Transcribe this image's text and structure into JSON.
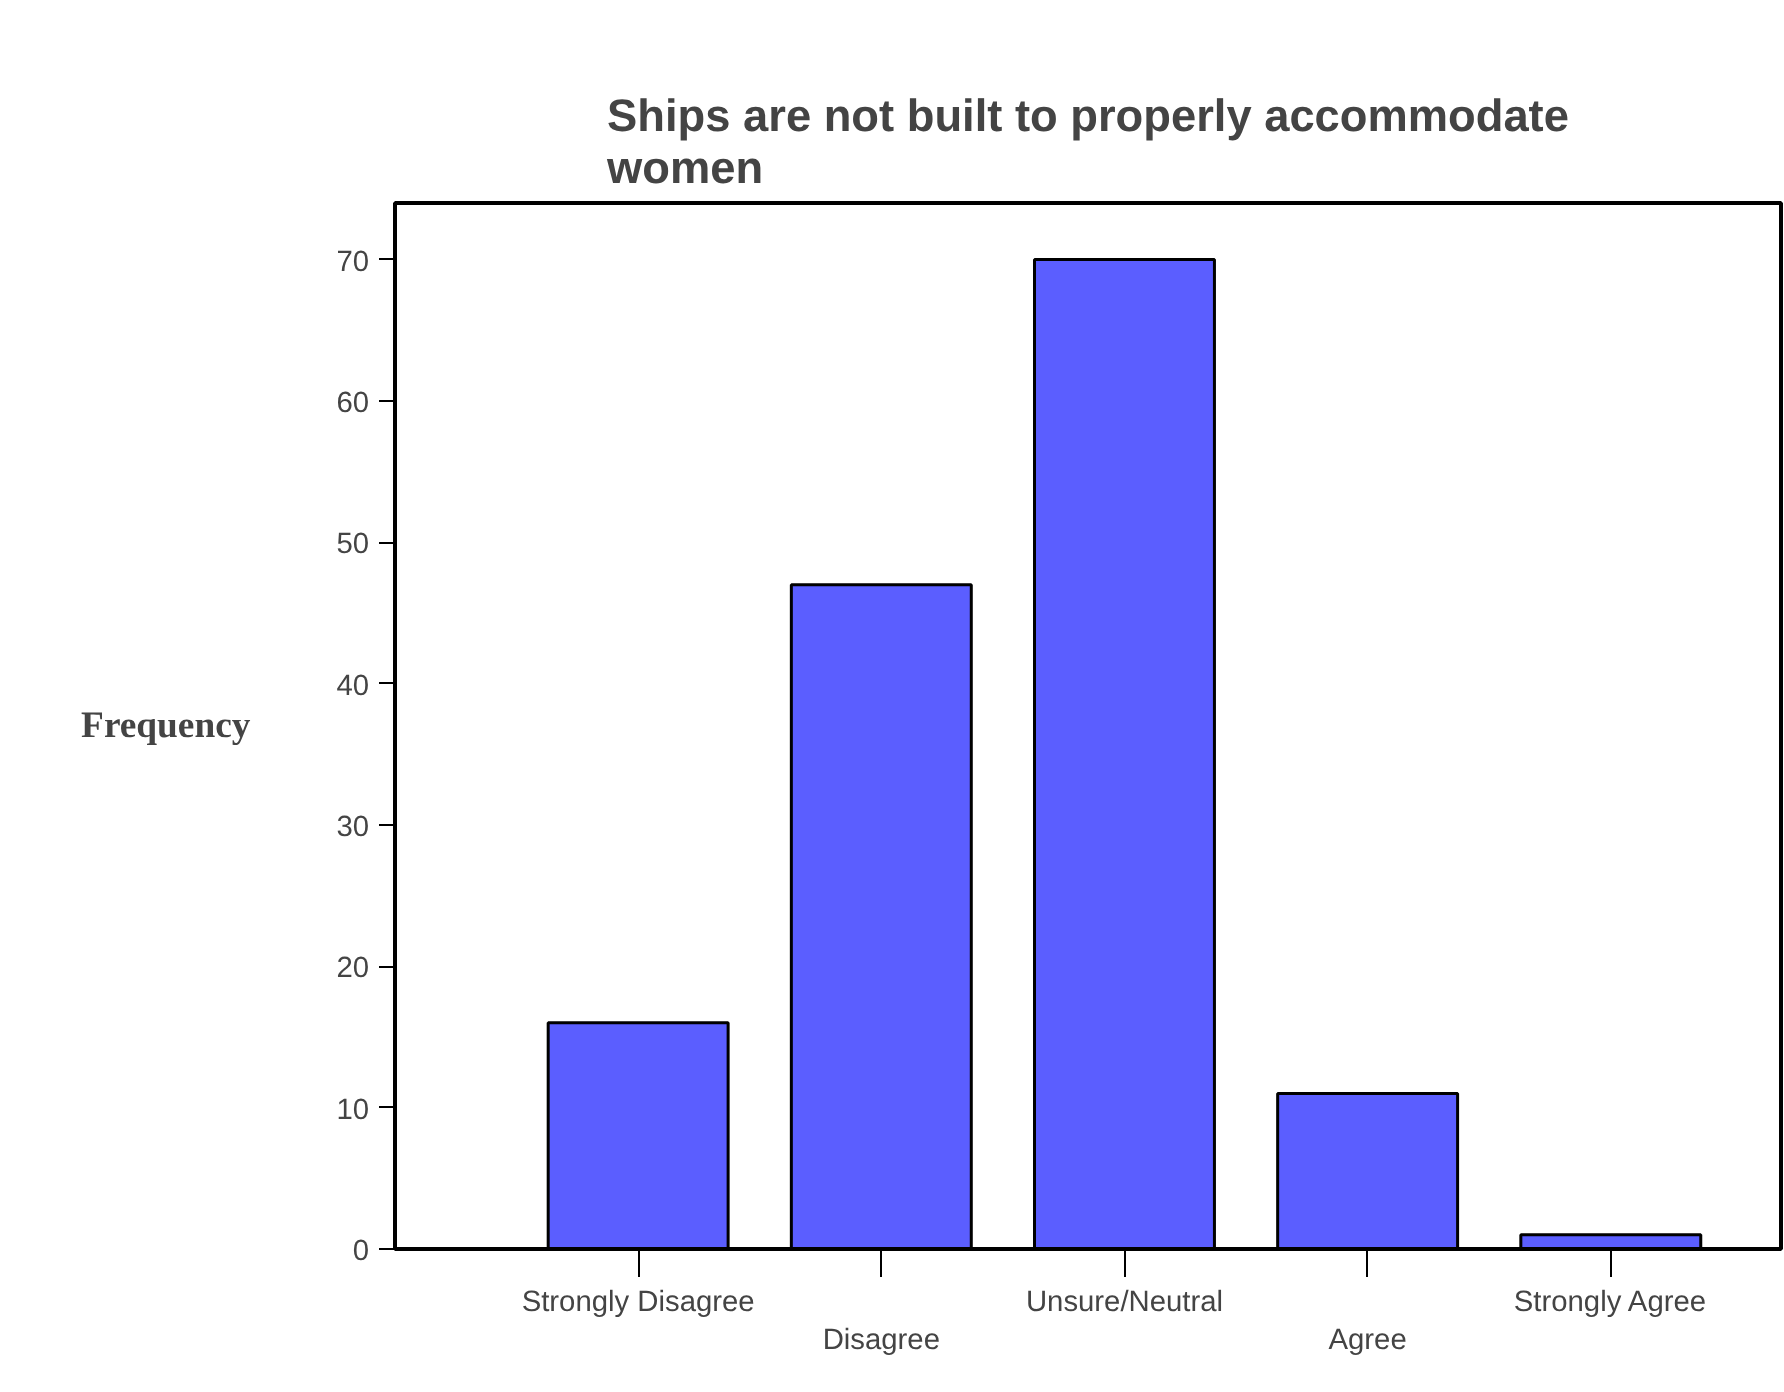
{
  "chart_data": {
    "type": "bar",
    "title": "Ships are not built to properly accommodate women",
    "ylabel": "Frequency",
    "categories": [
      "Strongly Disagree",
      "Disagree",
      "Unsure/Neutral",
      "Agree",
      "Strongly Agree"
    ],
    "values": [
      16,
      47,
      70,
      11,
      1
    ],
    "color": "#5b5eff",
    "ylim": [
      0,
      74
    ],
    "yticks": [
      0,
      10,
      20,
      30,
      40,
      50,
      60,
      70
    ],
    "grid": false
  }
}
